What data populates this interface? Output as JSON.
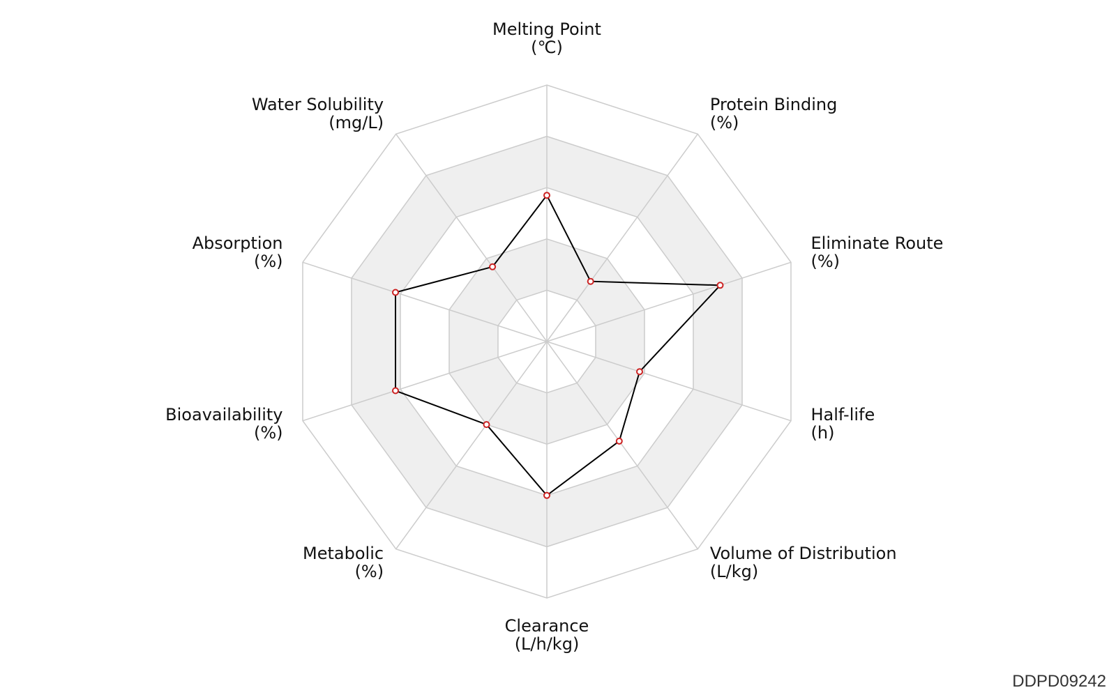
{
  "chart_data": {
    "type": "radar",
    "axes": [
      {
        "name": "Melting Point",
        "unit": "(℃)"
      },
      {
        "name": "Protein Binding",
        "unit": "(%)"
      },
      {
        "name": "Eliminate Route",
        "unit": "(%)"
      },
      {
        "name": "Half-life",
        "unit": "(h)"
      },
      {
        "name": "Volume of Distribution",
        "unit": "(L/kg)"
      },
      {
        "name": "Clearance",
        "unit": "(L/h/kg)"
      },
      {
        "name": "Metabolic",
        "unit": "(%)"
      },
      {
        "name": "Bioavailability",
        "unit": "(%)"
      },
      {
        "name": "Absorption",
        "unit": "(%)"
      },
      {
        "name": "Water Solubility",
        "unit": "(mg/L)"
      }
    ],
    "levels": 5,
    "range": [
      0,
      1
    ],
    "values": [
      0.57,
      0.29,
      0.71,
      0.38,
      0.48,
      0.6,
      0.4,
      0.62,
      0.62,
      0.36
    ],
    "grid": "polygon",
    "band_colors": [
      "#ffffff",
      "#efefef"
    ],
    "grid_color": "#cccccc",
    "line_color": "#000000",
    "marker_color": "#cc2222"
  },
  "watermark": "DDPD09242"
}
